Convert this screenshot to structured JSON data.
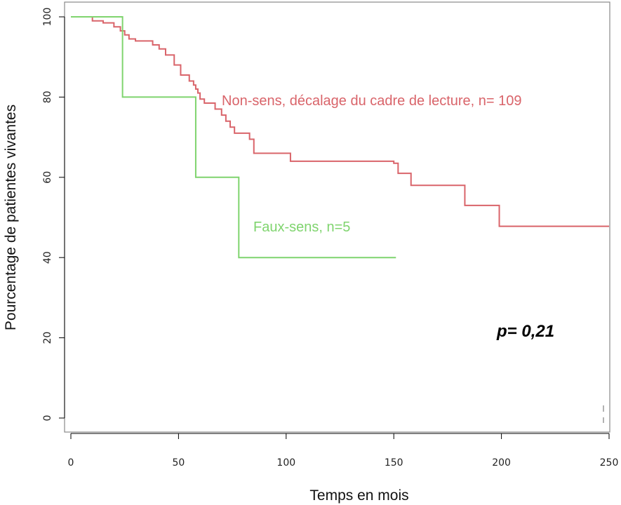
{
  "chart_data": {
    "type": "line",
    "step": true,
    "xlabel": "Temps en mois",
    "ylabel": "Pourcentage de patientes vivantes",
    "xlim": [
      0,
      250
    ],
    "ylim": [
      0,
      100
    ],
    "x_ticks": [
      "0",
      "50",
      "100",
      "150",
      "200",
      "250"
    ],
    "y_ticks": [
      "0",
      "20",
      "40",
      "60",
      "80",
      "100"
    ],
    "grid": false,
    "annotation": "p= 0,21",
    "series": [
      {
        "label": "Non-sens, décalage du cadre de lecture, n= 109",
        "color": "#d9646a",
        "points": [
          [
            0,
            100
          ],
          [
            10,
            99
          ],
          [
            15,
            98.5
          ],
          [
            20,
            97.5
          ],
          [
            23,
            96.5
          ],
          [
            25,
            95.5
          ],
          [
            27,
            94.5
          ],
          [
            30,
            94
          ],
          [
            38,
            93
          ],
          [
            41,
            92
          ],
          [
            44,
            90.5
          ],
          [
            48,
            88
          ],
          [
            51,
            85.5
          ],
          [
            55,
            84
          ],
          [
            57,
            83
          ],
          [
            58,
            82
          ],
          [
            59,
            81
          ],
          [
            60,
            79.5
          ],
          [
            62,
            78.5
          ],
          [
            67,
            77
          ],
          [
            70,
            75.5
          ],
          [
            72,
            74
          ],
          [
            74,
            72.5
          ],
          [
            76,
            71
          ],
          [
            83,
            69.5
          ],
          [
            85,
            66
          ],
          [
            102,
            64
          ],
          [
            150,
            63.5
          ],
          [
            152,
            61
          ],
          [
            158,
            58
          ],
          [
            183,
            53
          ],
          [
            199,
            47.8
          ],
          [
            250,
            47.8
          ]
        ]
      },
      {
        "label": "Faux-sens, n=5",
        "color": "#7fd46e",
        "points": [
          [
            0,
            100
          ],
          [
            24,
            80
          ],
          [
            58,
            60
          ],
          [
            78,
            40
          ],
          [
            151,
            40
          ]
        ]
      }
    ]
  }
}
